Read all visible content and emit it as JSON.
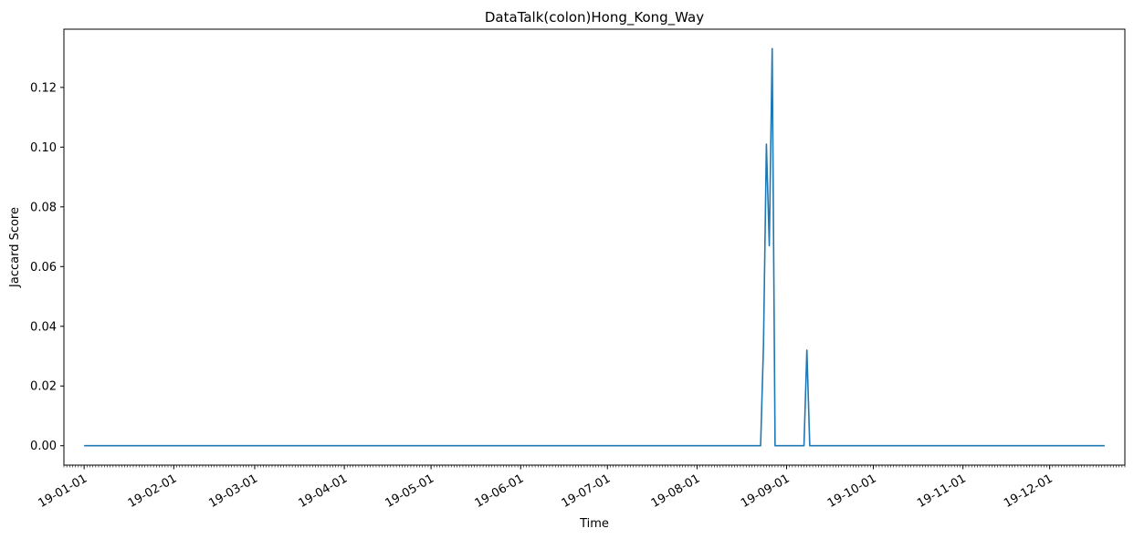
{
  "chart_data": {
    "type": "line",
    "title": "DataTalk(colon)Hong_Kong_Way",
    "xlabel": "Time",
    "ylabel": "Jaccard Score",
    "xlim": [
      "2018-12-25",
      "2019-12-27"
    ],
    "ylim": [
      -0.0065,
      0.1395
    ],
    "grid": false,
    "yticks": [
      0.0,
      0.02,
      0.04,
      0.06,
      0.08,
      0.1,
      0.12
    ],
    "ytick_labels": [
      "0.00",
      "0.02",
      "0.04",
      "0.06",
      "0.08",
      "0.10",
      "0.12"
    ],
    "xticks": [
      "2019-01-01",
      "2019-02-01",
      "2019-03-01",
      "2019-04-01",
      "2019-05-01",
      "2019-06-01",
      "2019-07-01",
      "2019-08-01",
      "2019-09-01",
      "2019-10-01",
      "2019-11-01",
      "2019-12-01"
    ],
    "xtick_labels": [
      "19-01-01",
      "19-02-01",
      "19-03-01",
      "19-04-01",
      "19-05-01",
      "19-06-01",
      "19-07-01",
      "19-08-01",
      "19-09-01",
      "19-10-01",
      "19-11-01",
      "19-12-01"
    ],
    "series": [
      {
        "name": "",
        "color": "#1f77b4",
        "x": [
          "2019-01-01",
          "2019-08-23",
          "2019-08-24",
          "2019-08-25",
          "2019-08-26",
          "2019-08-27",
          "2019-08-28",
          "2019-09-07",
          "2019-09-08",
          "2019-09-09",
          "2019-12-20"
        ],
        "y": [
          0.0,
          0.0,
          0.034,
          0.101,
          0.067,
          0.133,
          0.0,
          0.0,
          0.032,
          0.0,
          0.0
        ]
      }
    ]
  }
}
